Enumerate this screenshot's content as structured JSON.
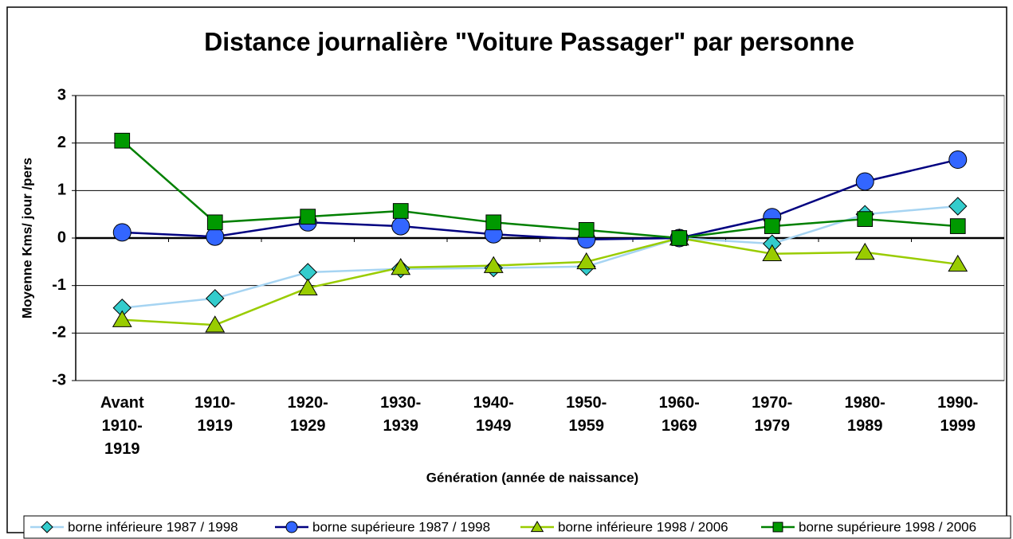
{
  "chart_data": {
    "type": "line",
    "title": "Distance journalière \"Voiture Passager\" par personne",
    "ylabel": "Moyenne Kms/ jour /pers",
    "xlabel": "Génération (année de naissance)",
    "categories": [
      "Avant 1910-1919",
      "1910-1919",
      "1920-1929",
      "1930-1939",
      "1940-1949",
      "1950-1959",
      "1960-1969",
      "1970-1979",
      "1980-1989",
      "1990-1999"
    ],
    "series": [
      {
        "name": "borne inférieure 1987 / 1998",
        "color": "#a6d4f2",
        "marker_color": "#33cccc",
        "marker": "diamond",
        "values": [
          -1.47,
          -1.27,
          -0.72,
          -0.65,
          -0.63,
          -0.6,
          0,
          -0.12,
          0.5,
          0.67
        ]
      },
      {
        "name": "borne supérieure 1987 / 1998",
        "color": "#000080",
        "marker_color": "#3366ff",
        "marker": "circle",
        "values": [
          0.12,
          0.03,
          0.33,
          0.25,
          0.08,
          -0.03,
          0,
          0.44,
          1.19,
          1.65
        ]
      },
      {
        "name": "borne inférieure 1998 / 2006",
        "color": "#99cc00",
        "marker_color": "#99cc00",
        "marker": "triangle",
        "values": [
          -1.72,
          -1.83,
          -1.05,
          -0.62,
          -0.58,
          -0.5,
          0,
          -0.33,
          -0.3,
          -0.55
        ]
      },
      {
        "name": "borne supérieure 1998 / 2006",
        "color": "#008000",
        "marker_color": "#009900",
        "marker": "square",
        "values": [
          2.05,
          0.33,
          0.45,
          0.57,
          0.33,
          0.17,
          0,
          0.25,
          0.4,
          0.25
        ]
      }
    ],
    "ylim": [
      -3,
      3
    ],
    "yticks": [
      -3,
      -2,
      -1,
      0,
      1,
      2,
      3
    ],
    "grid": true,
    "legend": "bottom"
  }
}
